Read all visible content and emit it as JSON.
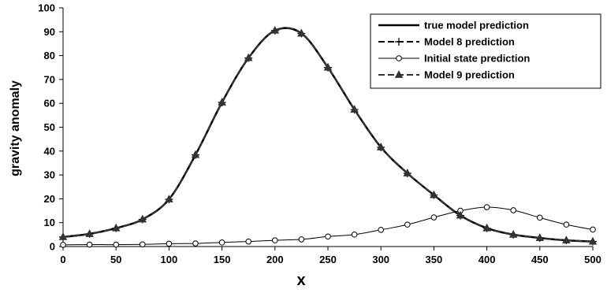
{
  "chart_data": {
    "type": "line",
    "title": "",
    "xlabel": "x",
    "ylabel": "gravity anomaly",
    "xlim": [
      0,
      500
    ],
    "ylim": [
      0,
      100
    ],
    "xticks": [
      0,
      50,
      100,
      150,
      200,
      250,
      300,
      350,
      400,
      450,
      500
    ],
    "yticks": [
      0,
      10,
      20,
      30,
      40,
      50,
      60,
      70,
      80,
      90,
      100
    ],
    "grid": false,
    "legend_position": "top-right",
    "x": [
      0,
      25,
      50,
      75,
      100,
      125,
      150,
      175,
      200,
      225,
      250,
      275,
      300,
      325,
      350,
      375,
      400,
      425,
      450,
      475,
      500
    ],
    "series": [
      {
        "name": "true model prediction",
        "style": "solid-thick",
        "color": "#000000",
        "values": [
          4.0,
          5.3,
          7.7,
          11.4,
          19.8,
          38.4,
          60.4,
          79.0,
          90.5,
          89.3,
          75.0,
          57.4,
          41.6,
          30.7,
          21.6,
          13.0,
          7.7,
          5.0,
          3.6,
          2.6,
          2.1
        ]
      },
      {
        "name": "Model 8 prediction",
        "style": "dashed-plus",
        "color": "#000000",
        "values": [
          4.0,
          5.3,
          7.7,
          11.4,
          19.8,
          38.4,
          60.4,
          79.0,
          90.5,
          89.3,
          75.0,
          57.4,
          41.6,
          30.7,
          21.6,
          13.0,
          7.7,
          5.0,
          3.6,
          2.6,
          2.1
        ]
      },
      {
        "name": "Initial state prediction",
        "style": "thin-circle",
        "color": "#000000",
        "values": [
          0.7,
          0.8,
          0.8,
          0.9,
          1.2,
          1.3,
          1.7,
          2.1,
          2.6,
          3.0,
          4.2,
          5.0,
          7.0,
          9.2,
          12.2,
          15.0,
          16.5,
          15.2,
          12.1,
          9.2,
          7.1
        ]
      },
      {
        "name": "Model 9 prediction",
        "style": "dashed-triangle",
        "color": "#333333",
        "values": [
          4.0,
          5.3,
          7.7,
          11.4,
          19.8,
          38.4,
          60.4,
          79.0,
          90.5,
          89.3,
          75.0,
          57.4,
          41.6,
          30.7,
          21.6,
          13.0,
          7.7,
          5.0,
          3.6,
          2.6,
          2.1
        ]
      }
    ]
  }
}
